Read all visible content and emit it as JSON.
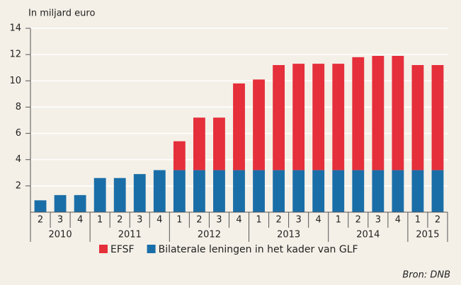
{
  "chart_data": {
    "type": "stacked_bar",
    "y_label": "In miljard euro",
    "categories": [
      "2",
      "3",
      "4",
      "1",
      "2",
      "3",
      "4",
      "1",
      "2",
      "3",
      "4",
      "1",
      "2",
      "3",
      "4",
      "1",
      "2",
      "3",
      "4",
      "1",
      "2"
    ],
    "years": [
      "2010",
      "2010",
      "2010",
      "2011",
      "2011",
      "2011",
      "2011",
      "2012",
      "2012",
      "2012",
      "2012",
      "2013",
      "2013",
      "2013",
      "2013",
      "2014",
      "2014",
      "2014",
      "2014",
      "2015",
      "2015"
    ],
    "series": [
      {
        "name": "EFSF",
        "color": "#e52f3b",
        "values": [
          0,
          0,
          0,
          0,
          0,
          0,
          0,
          2.2,
          4.0,
          4.0,
          6.6,
          6.9,
          8.0,
          8.1,
          8.1,
          8.1,
          8.6,
          8.7,
          8.7,
          8.0,
          8.0
        ]
      },
      {
        "name": "Bilaterale leningen in het kader van GLF",
        "color": "#1a6ea8",
        "values": [
          0.9,
          1.3,
          1.3,
          2.6,
          2.6,
          2.9,
          3.2,
          3.2,
          3.2,
          3.2,
          3.2,
          3.2,
          3.2,
          3.2,
          3.2,
          3.2,
          3.2,
          3.2,
          3.2,
          3.2,
          3.2
        ]
      }
    ],
    "ylim": [
      0,
      14
    ],
    "yticks": [
      2,
      4,
      6,
      8,
      10,
      12,
      14
    ],
    "grid": true,
    "legend": "bottom",
    "source": "Bron: DNB"
  }
}
